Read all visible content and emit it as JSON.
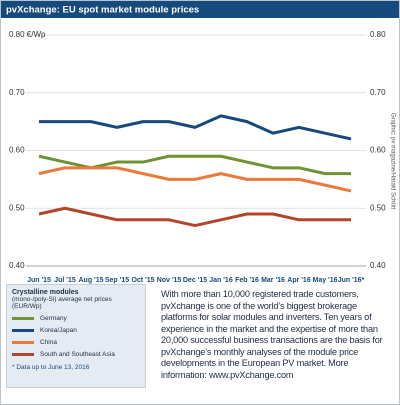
{
  "chart_data": {
    "type": "line",
    "title": "pvXchange: EU spot market module prices",
    "categories": [
      "Jun '15",
      "Jul '15",
      "Aug '15",
      "Sep '15",
      "Oct '15",
      "Nov '15",
      "Dec '15",
      "Jan '16",
      "Feb '16",
      "Mar '16",
      "Apr '16",
      "May '16",
      "Jun '16*"
    ],
    "series": [
      {
        "name": "Germany",
        "color": "#6f9233",
        "values": [
          0.59,
          0.58,
          0.57,
          0.58,
          0.58,
          0.59,
          0.59,
          0.59,
          0.58,
          0.57,
          0.57,
          0.56,
          0.56
        ]
      },
      {
        "name": "Korea/Japan",
        "color": "#174a7c",
        "values": [
          0.65,
          0.65,
          0.65,
          0.64,
          0.65,
          0.65,
          0.64,
          0.66,
          0.65,
          0.63,
          0.64,
          0.63,
          0.62
        ]
      },
      {
        "name": "China",
        "color": "#ea7a3c",
        "values": [
          0.56,
          0.57,
          0.57,
          0.57,
          0.56,
          0.55,
          0.55,
          0.56,
          0.55,
          0.55,
          0.55,
          0.54,
          0.53
        ]
      },
      {
        "name": "South and Southeast Asia",
        "color": "#b3452b",
        "values": [
          0.49,
          0.5,
          0.49,
          0.48,
          0.48,
          0.48,
          0.47,
          0.48,
          0.49,
          0.49,
          0.48,
          0.48,
          0.48
        ]
      }
    ],
    "ylim": [
      0.4,
      0.8
    ],
    "yticks": [
      {
        "value": 0.4,
        "label": "0.40"
      },
      {
        "value": 0.5,
        "label": "0.50"
      },
      {
        "value": 0.6,
        "label": "0.60"
      },
      {
        "value": 0.7,
        "label": "0.70"
      },
      {
        "value": 0.8,
        "label": "0.80 €/Wp"
      }
    ],
    "y2lim": [
      0.4,
      0.8
    ],
    "y2ticks": [
      {
        "value": 0.4,
        "label": "0.40"
      },
      {
        "value": 0.5,
        "label": "0.50"
      },
      {
        "value": 0.6,
        "label": "0.60"
      },
      {
        "value": 0.7,
        "label": "0.70"
      },
      {
        "value": 0.8,
        "label": "0.80"
      }
    ],
    "grid": true,
    "legend_title": "Crystalline modules",
    "legend_subtitle": "(mono-/poly-Si) average net prices (EUR/Wp)",
    "footnote": "* Data up to June 13, 2016",
    "source": "Graphic: pv magazine/Harald Schütt",
    "description": "With more than 10,000 registered trade customers, pvXchange is one of the world’s biggest brokerage platforms for solar modules and inverters. Ten years of experience in the market and the expertise of more than 20,000 successful business transactions are the basis for pvXchange’s monthly analyses of the module price developments in the European PV market. More information: www.pvXchange.com"
  }
}
